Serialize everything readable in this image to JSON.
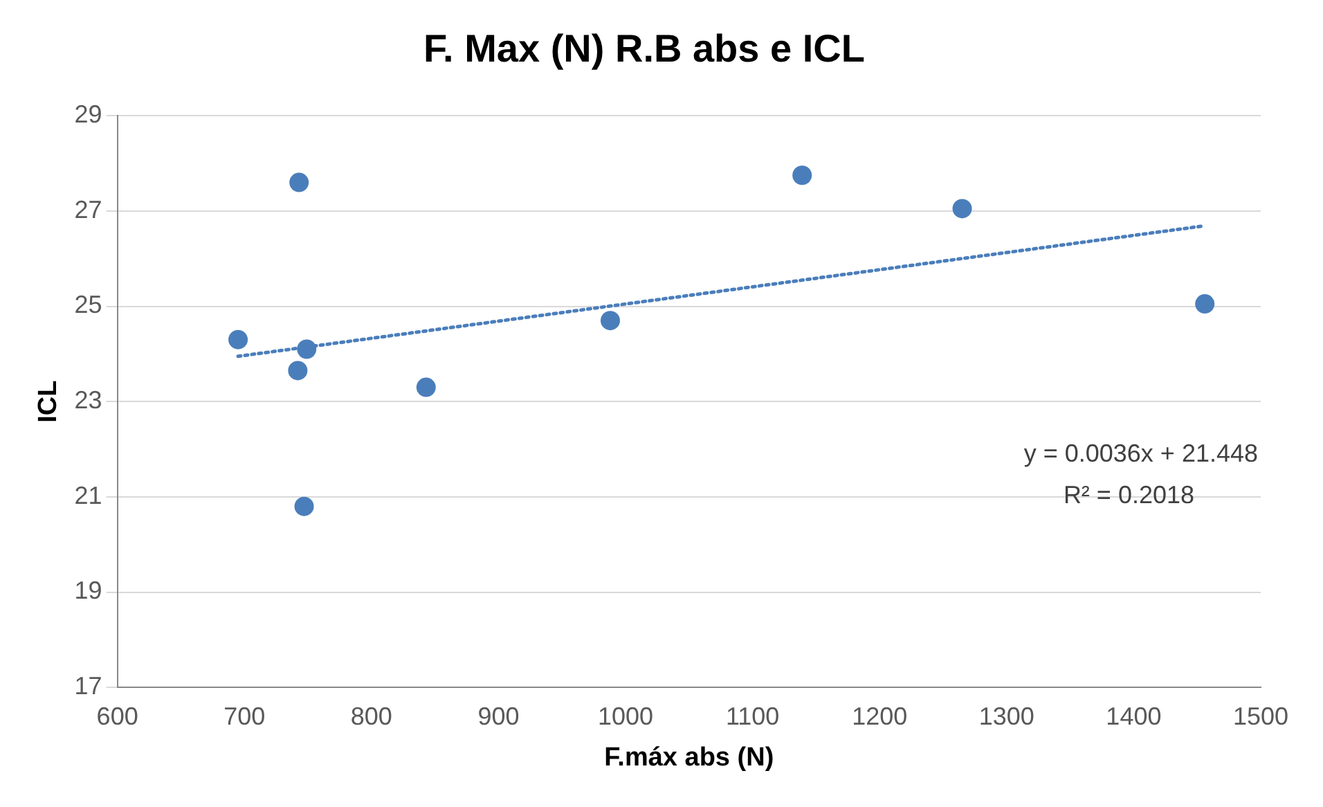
{
  "chart_data": {
    "type": "scatter",
    "title": "F. Max (N) R.B abs e ICL",
    "xlabel": "F.máx abs (N)",
    "ylabel": "ICL",
    "series": [
      {
        "type": "scatter",
        "color": "#4a7ebb",
        "x": [
          695,
          743,
          742,
          749,
          747,
          843,
          988,
          1139,
          1265,
          1456
        ],
        "values": [
          24.3,
          27.6,
          23.65,
          24.1,
          20.8,
          23.3,
          24.7,
          27.75,
          27.05,
          25.05
        ]
      },
      {
        "type": "line",
        "color": "#4a7ebb",
        "line_style": "dotted",
        "marker": "none",
        "x": [
          695,
          1456
        ],
        "values": [
          23.95,
          26.69
        ]
      }
    ],
    "xlim": [
      600,
      1500
    ],
    "xticks": [
      600,
      700,
      800,
      900,
      1000,
      1100,
      1200,
      1300,
      1400,
      1500
    ],
    "ylim": [
      17,
      29
    ],
    "yticks": [
      17,
      19,
      21,
      23,
      25,
      27,
      29
    ],
    "grid": "y",
    "legend": false,
    "marker": "circle",
    "annotations": [
      "y = 0.0036x + 21.448",
      "R² = 0.2018"
    ]
  }
}
